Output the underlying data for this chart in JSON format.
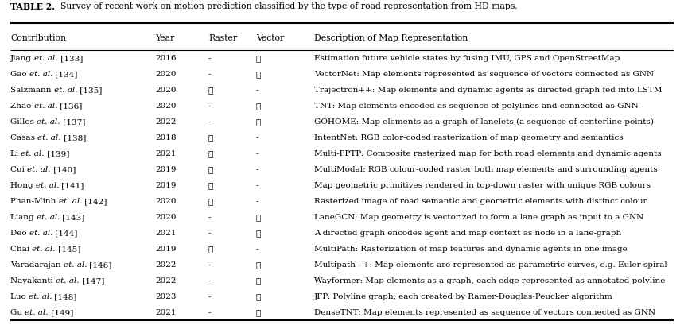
{
  "title_bold": "TABLE 2.",
  "title_rest": "  Survey of recent work on motion prediction classified by the type of road representation from HD maps.",
  "columns": [
    "Contribution",
    "Year",
    "Raster",
    "Vector",
    "Description of Map Representation"
  ],
  "col_x_inches": [
    0.13,
    1.95,
    2.62,
    3.22,
    3.95
  ],
  "rows": [
    {
      "contrib_plain": "Jiang ",
      "contrib_italic": "et. al.",
      "contrib_ref": " [133]",
      "year": "2016",
      "raster": "-",
      "vector": "✓",
      "description": "Estimation future vehicle states by fusing IMU, GPS and OpenStreetMap"
    },
    {
      "contrib_plain": "Gao ",
      "contrib_italic": "et. al.",
      "contrib_ref": " [134]",
      "year": "2020",
      "raster": "-",
      "vector": "✓",
      "description": "VectorNet: Map elements represented as sequence of vectors connected as GNN"
    },
    {
      "contrib_plain": "Salzmann ",
      "contrib_italic": "et. al.",
      "contrib_ref": " [135]",
      "year": "2020",
      "raster": "✓",
      "vector": "-",
      "description": "Trajectron++: Map elements and dynamic agents as directed graph fed into LSTM"
    },
    {
      "contrib_plain": "Zhao ",
      "contrib_italic": "et. al.",
      "contrib_ref": " [136]",
      "year": "2020",
      "raster": "-",
      "vector": "✓",
      "description": "TNT: Map elements encoded as sequence of polylines and connected as GNN"
    },
    {
      "contrib_plain": "Gilles ",
      "contrib_italic": "et. al.",
      "contrib_ref": " [137]",
      "year": "2022",
      "raster": "-",
      "vector": "✓",
      "description": "GOHOME: Map elements as a graph of lanelets (a sequence of centerline points)"
    },
    {
      "contrib_plain": "Casas ",
      "contrib_italic": "et. al.",
      "contrib_ref": " [138]",
      "year": "2018",
      "raster": "✓",
      "vector": "-",
      "description": "IntentNet: RGB color-coded rasterization of map geometry and semantics"
    },
    {
      "contrib_plain": "Li ",
      "contrib_italic": "et. al.",
      "contrib_ref": " [139]",
      "year": "2021",
      "raster": "✓",
      "vector": "-",
      "description": "Multi-PPTP: Composite rasterized map for both road elements and dynamic agents"
    },
    {
      "contrib_plain": "Cui ",
      "contrib_italic": "et. al.",
      "contrib_ref": " [140]",
      "year": "2019",
      "raster": "✓",
      "vector": "-",
      "description": "MultiModal: RGB colour-coded raster both map elements and surrounding agents"
    },
    {
      "contrib_plain": "Hong ",
      "contrib_italic": "et. al.",
      "contrib_ref": " [141]",
      "year": "2019",
      "raster": "✓",
      "vector": "-",
      "description": "Map geometric primitives rendered in top-down raster with unique RGB colours"
    },
    {
      "contrib_plain": "Phan-Minh ",
      "contrib_italic": "et. al.",
      "contrib_ref": " [142]",
      "year": "2020",
      "raster": "✓",
      "vector": "-",
      "description": "Rasterized image of road semantic and geometric elements with distinct colour"
    },
    {
      "contrib_plain": "Liang ",
      "contrib_italic": "et. al.",
      "contrib_ref": " [143]",
      "year": "2020",
      "raster": "-",
      "vector": "✓",
      "description": "LaneGCN: Map geometry is vectorized to form a lane graph as input to a GNN"
    },
    {
      "contrib_plain": "Deo ",
      "contrib_italic": "et. al.",
      "contrib_ref": " [144]",
      "year": "2021",
      "raster": "-",
      "vector": "✓",
      "description": "A directed graph encodes agent and map context as node in a lane-graph"
    },
    {
      "contrib_plain": "Chai ",
      "contrib_italic": "et. al.",
      "contrib_ref": " [145]",
      "year": "2019",
      "raster": "✓",
      "vector": "-",
      "description": "MultiPath: Rasterization of map features and dynamic agents in one image"
    },
    {
      "contrib_plain": "Varadarajan ",
      "contrib_italic": "et. al.",
      "contrib_ref": " [146]",
      "year": "2022",
      "raster": "-",
      "vector": "✓",
      "description": "Multipath++: Map elements are represented as parametric curves, e.g. Euler spiral"
    },
    {
      "contrib_plain": "Nayakanti ",
      "contrib_italic": "et. al.",
      "contrib_ref": " [147]",
      "year": "2022",
      "raster": "-",
      "vector": "✓",
      "description": "Wayformer: Map elements as a graph, each edge represented as annotated polyline"
    },
    {
      "contrib_plain": "Luo ",
      "contrib_italic": "et. al.",
      "contrib_ref": " [148]",
      "year": "2023",
      "raster": "-",
      "vector": "✓",
      "description": "JFP: Polyline graph, each created by Ramer-Douglas-Peucker algorithm"
    },
    {
      "contrib_plain": "Gu ",
      "contrib_italic": "et. al.",
      "contrib_ref": " [149]",
      "year": "2021",
      "raster": "-",
      "vector": "✓",
      "description": "DenseTNT: Map elements represented as sequence of vectors connected as GNN"
    }
  ],
  "bg_color": "#ffffff",
  "text_color": "#000000",
  "font_size": 7.5,
  "title_font_size": 7.8,
  "header_font_size": 7.8,
  "fig_width": 8.6,
  "fig_height": 4.1,
  "dpi": 100
}
